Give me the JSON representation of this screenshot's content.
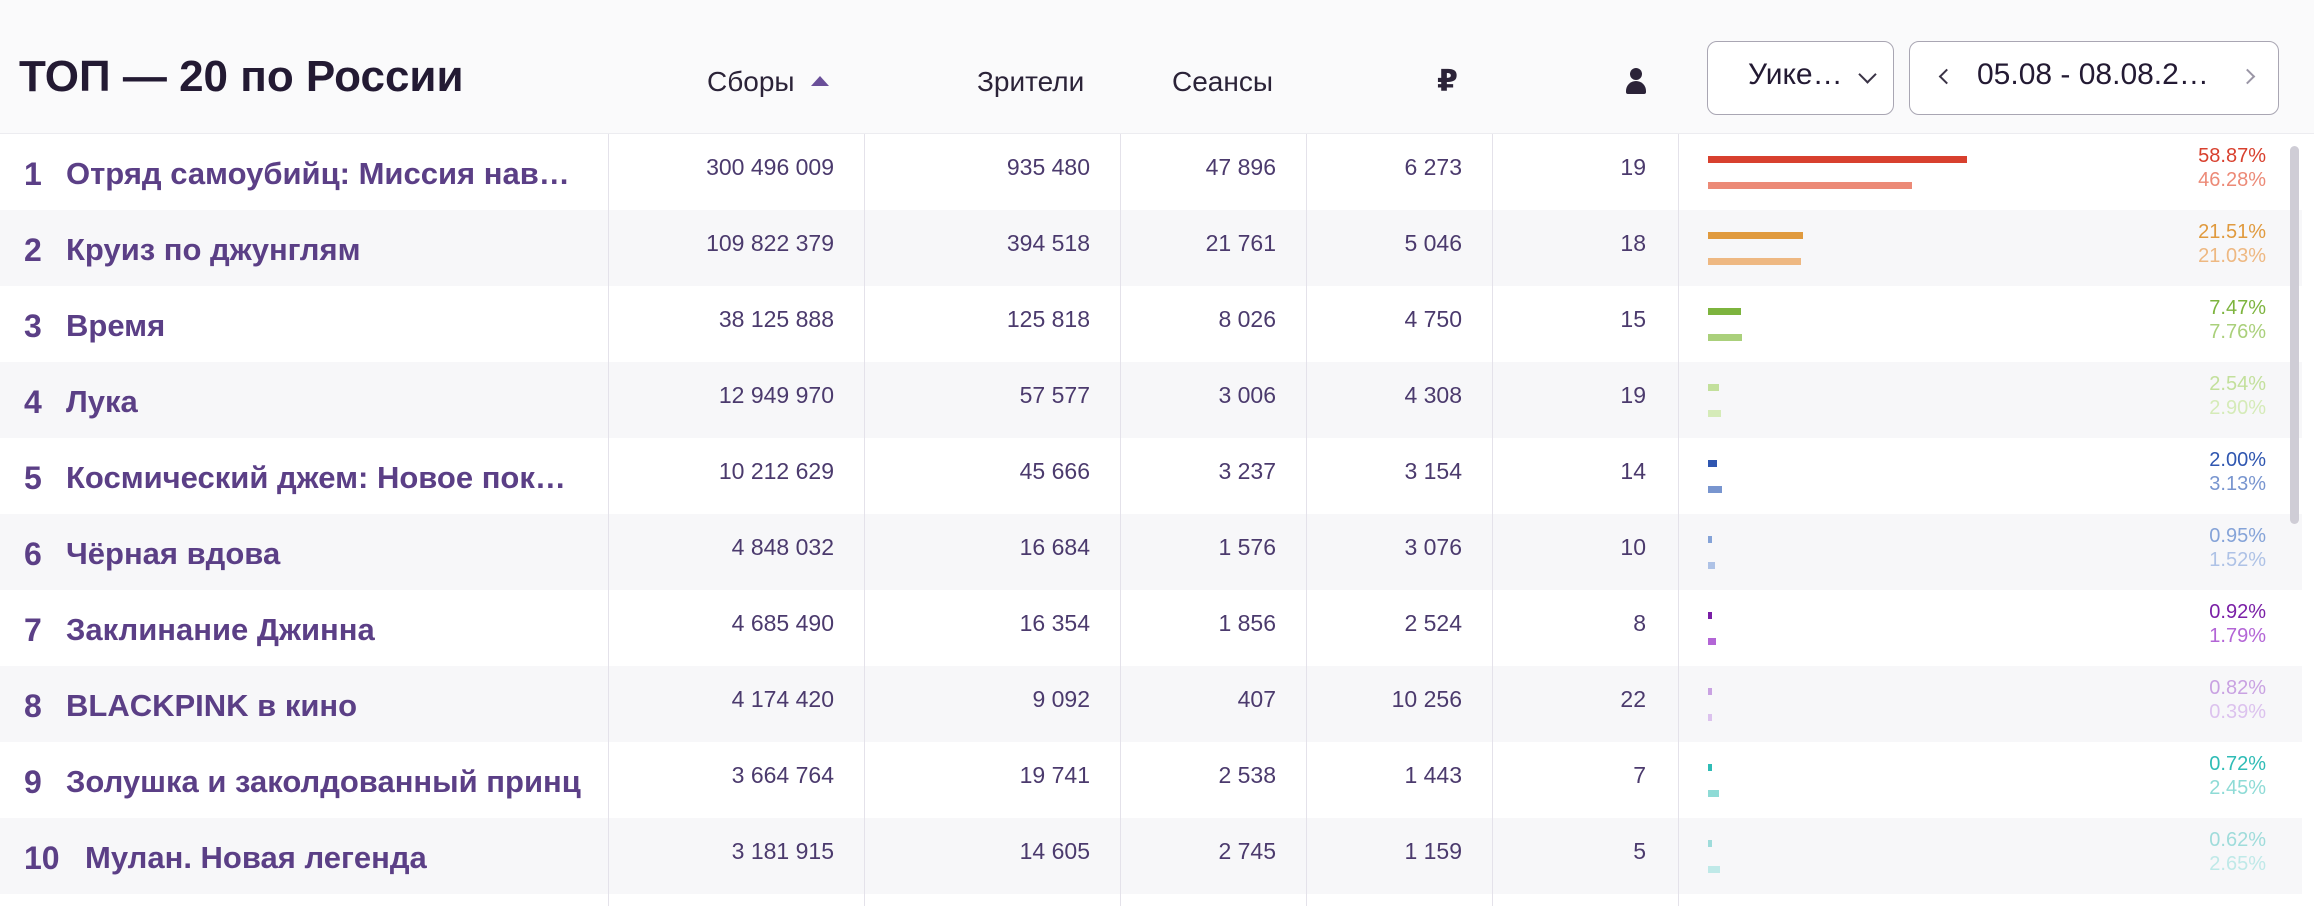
{
  "header": {
    "title": "ТОП — 20 по России",
    "columns": {
      "sbory": "Сборы",
      "zriteli": "Зрители",
      "seansy": "Сеансы",
      "ruble": "₽"
    },
    "period": "Уике…",
    "date_range": "05.08 - 08.08.2…"
  },
  "colors": {
    "accent": "#5b3f86",
    "title": "#231a33"
  },
  "icons": {
    "sort": "sort-asc-icon",
    "ruble": "ruble-icon",
    "person": "person-icon",
    "prev": "chevron-left-icon",
    "next": "chevron-right-icon",
    "dropdown": "chevron-down-icon"
  },
  "rows": [
    {
      "rank": "1",
      "name": "Отряд самоубийц: Миссия нав…",
      "sbory": "300 496 009",
      "zriteli": "935 480",
      "seansy": "47 896",
      "ruble": "6 273",
      "seats": "19",
      "share1": "58.87%",
      "share2": "46.28%",
      "share1_value": 58.87,
      "share2_value": 46.28,
      "color1": "#d8402e",
      "color2": "#ec8a77"
    },
    {
      "rank": "2",
      "name": "Круиз по джунглям",
      "sbory": "109 822 379",
      "zriteli": "394 518",
      "seansy": "21 761",
      "ruble": "5 046",
      "seats": "18",
      "share1": "21.51%",
      "share2": "21.03%",
      "share1_value": 21.51,
      "share2_value": 21.03,
      "color1": "#e09a3e",
      "color2": "#eeb882"
    },
    {
      "rank": "3",
      "name": "Время",
      "sbory": "38 125 888",
      "zriteli": "125 818",
      "seansy": "8 026",
      "ruble": "4 750",
      "seats": "15",
      "share1": "7.47%",
      "share2": "7.76%",
      "share1_value": 7.47,
      "share2_value": 7.76,
      "color1": "#7db43e",
      "color2": "#aad07b"
    },
    {
      "rank": "4",
      "name": "Лука",
      "sbory": "12 949 970",
      "zriteli": "57 577",
      "seansy": "3 006",
      "ruble": "4 308",
      "seats": "19",
      "share1": "2.54%",
      "share2": "2.90%",
      "share1_value": 2.54,
      "share2_value": 2.9,
      "color1": "#c3e09c",
      "color2": "#d5ebb8"
    },
    {
      "rank": "5",
      "name": "Космический джем: Новое пок…",
      "sbory": "10 212 629",
      "zriteli": "45 666",
      "seansy": "3 237",
      "ruble": "3 154",
      "seats": "14",
      "share1": "2.00%",
      "share2": "3.13%",
      "share1_value": 2.0,
      "share2_value": 3.13,
      "color1": "#2f56b0",
      "color2": "#7895cf"
    },
    {
      "rank": "6",
      "name": "Чёрная вдова",
      "sbory": "4 848 032",
      "zriteli": "16 684",
      "seansy": "1 576",
      "ruble": "3 076",
      "seats": "10",
      "share1": "0.95%",
      "share2": "1.52%",
      "share1_value": 0.95,
      "share2_value": 1.52,
      "color1": "#85a3d8",
      "color2": "#aec2e6"
    },
    {
      "rank": "7",
      "name": "Заклинание Джинна",
      "sbory": "4 685 490",
      "zriteli": "16 354",
      "seansy": "1 856",
      "ruble": "2 524",
      "seats": "8",
      "share1": "0.92%",
      "share2": "1.79%",
      "share1_value": 0.92,
      "share2_value": 1.79,
      "color1": "#7a1fa6",
      "color2": "#b365d6"
    },
    {
      "rank": "8",
      "name": "BLACKPINK в кино",
      "sbory": "4 174 420",
      "zriteli": "9 092",
      "seansy": "407",
      "ruble": "10 256",
      "seats": "22",
      "share1": "0.82%",
      "share2": "0.39%",
      "share1_value": 0.82,
      "share2_value": 0.39,
      "color1": "#c9a2e2",
      "color2": "#dcc2ee"
    },
    {
      "rank": "9",
      "name": "Золушка и заколдованный принц",
      "sbory": "3 664 764",
      "zriteli": "19 741",
      "seansy": "2 538",
      "ruble": "1 443",
      "seats": "7",
      "share1": "0.72%",
      "share2": "2.45%",
      "share1_value": 0.72,
      "share2_value": 2.45,
      "color1": "#2fbcb6",
      "color2": "#8edbd6"
    },
    {
      "rank": "10",
      "name": "Мулан. Новая легенда",
      "sbory": "3 181 915",
      "zriteli": "14 605",
      "seansy": "2 745",
      "ruble": "1 159",
      "seats": "5",
      "share1": "0.62%",
      "share2": "2.65%",
      "share1_value": 0.62,
      "share2_value": 2.65,
      "color1": "#9fdcdb",
      "color2": "#bfe9e8"
    }
  ]
}
